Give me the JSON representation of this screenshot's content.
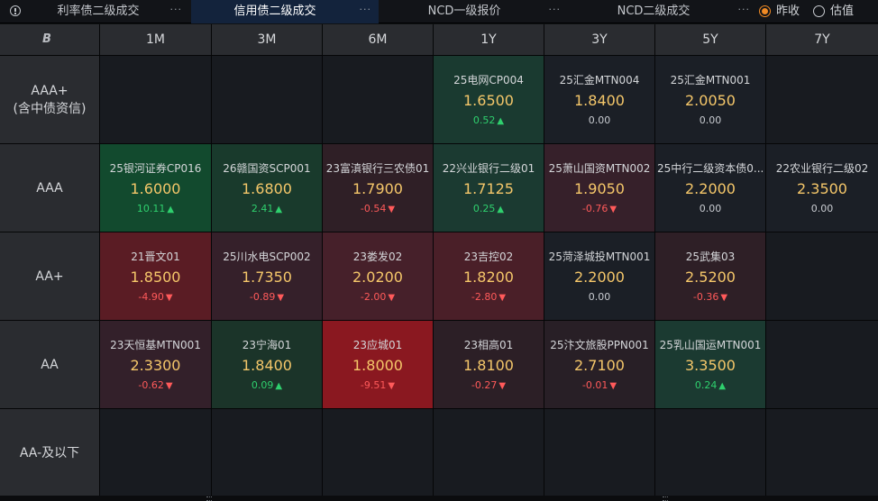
{
  "tabs": [
    {
      "label": "利率债二级成交",
      "menu": "···",
      "active": false
    },
    {
      "label": "信用债二级成交",
      "menu": "···",
      "active": true
    },
    {
      "label": "NCD一级报价",
      "menu": "···",
      "active": false
    },
    {
      "label": "NCD二级成交",
      "menu": "···",
      "active": false
    }
  ],
  "price_mode": {
    "options": [
      {
        "label": "昨收",
        "checked": true
      },
      {
        "label": "估值",
        "checked": false
      }
    ]
  },
  "grid": {
    "corner_icon": "B-logo-icon",
    "columns": [
      "1M",
      "3M",
      "6M",
      "1Y",
      "3Y",
      "5Y",
      "7Y"
    ],
    "rows": [
      {
        "label": "AAA+\n(含中债资信)",
        "cells": [
          null,
          null,
          null,
          {
            "name": "25电网CP004",
            "yield": "1.6500",
            "change": "0.52",
            "dir": "up",
            "bg": "#1a3a30"
          },
          {
            "name": "25汇金MTN004",
            "yield": "1.8400",
            "change": "0.00",
            "dir": "flat",
            "bg": "#1b1f26"
          },
          {
            "name": "25汇金MTN001",
            "yield": "2.0050",
            "change": "0.00",
            "dir": "flat",
            "bg": "#1b1f26"
          },
          null
        ]
      },
      {
        "label": "AAA",
        "cells": [
          {
            "name": "25银河证券CP016",
            "yield": "1.6000",
            "change": "10.11",
            "dir": "up",
            "bg": "#124a2e"
          },
          {
            "name": "26赣国资SCP001",
            "yield": "1.6800",
            "change": "2.41",
            "dir": "up",
            "bg": "#193a2c"
          },
          {
            "name": "23富滇银行三农债01",
            "yield": "1.7900",
            "change": "-0.54",
            "dir": "down",
            "bg": "#2f1f26"
          },
          {
            "name": "22兴业银行二级01",
            "yield": "1.7125",
            "change": "0.25",
            "dir": "up",
            "bg": "#1b3a31"
          },
          {
            "name": "25萧山国资MTN002",
            "yield": "1.9050",
            "change": "-0.76",
            "dir": "down",
            "bg": "#36202a"
          },
          {
            "name": "25中行二级资本债0...",
            "yield": "2.2000",
            "change": "0.00",
            "dir": "flat",
            "bg": "#1b1f26"
          },
          {
            "name": "22农业银行二级02",
            "yield": "2.3500",
            "change": "0.00",
            "dir": "flat",
            "bg": "#1b1f26"
          }
        ]
      },
      {
        "label": "AA+",
        "cells": [
          {
            "name": "21晋文01",
            "yield": "1.8500",
            "change": "-4.90",
            "dir": "down",
            "bg": "#5a1c24"
          },
          {
            "name": "25川水电SCP002",
            "yield": "1.7350",
            "change": "-0.89",
            "dir": "down",
            "bg": "#35202a"
          },
          {
            "name": "23娄发02",
            "yield": "2.0200",
            "change": "-2.00",
            "dir": "down",
            "bg": "#46202a"
          },
          {
            "name": "23吉控02",
            "yield": "1.8200",
            "change": "-2.80",
            "dir": "down",
            "bg": "#4a1f28"
          },
          {
            "name": "25菏泽城投MTN001",
            "yield": "2.2000",
            "change": "0.00",
            "dir": "flat",
            "bg": "#1b1f26"
          },
          {
            "name": "25武集03",
            "yield": "2.5200",
            "change": "-0.36",
            "dir": "down",
            "bg": "#2e1f26"
          },
          null
        ]
      },
      {
        "label": "AA",
        "cells": [
          {
            "name": "23天恒基MTN001",
            "yield": "2.3300",
            "change": "-0.62",
            "dir": "down",
            "bg": "#33202a"
          },
          {
            "name": "23宁海01",
            "yield": "1.8400",
            "change": "0.09",
            "dir": "up",
            "bg": "#1b3429"
          },
          {
            "name": "23应城01",
            "yield": "1.8000",
            "change": "-9.51",
            "dir": "down",
            "bg": "#8a1820"
          },
          {
            "name": "23相高01",
            "yield": "1.8100",
            "change": "-0.27",
            "dir": "down",
            "bg": "#2c1f26"
          },
          {
            "name": "25汴文旅股PPN001",
            "yield": "2.7100",
            "change": "-0.01",
            "dir": "down",
            "bg": "#281f26"
          },
          {
            "name": "25乳山国运MTN001",
            "yield": "3.3500",
            "change": "0.24",
            "dir": "up",
            "bg": "#1b3a31"
          },
          null
        ]
      },
      {
        "label": "AA-及以下",
        "cells": [
          null,
          null,
          null,
          null,
          null,
          null,
          null
        ]
      }
    ],
    "arrows": {
      "up": "▲",
      "down": "▼",
      "flat": ""
    }
  }
}
